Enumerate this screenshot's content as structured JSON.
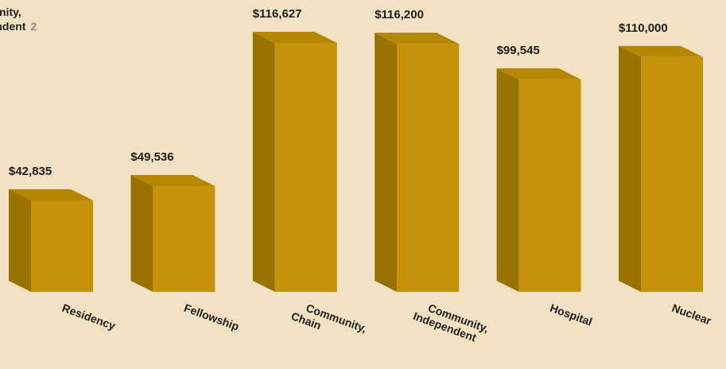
{
  "legend_fragment": {
    "line1": "munity,",
    "line2": "pendent",
    "number": "2"
  },
  "chart_data": {
    "type": "bar",
    "categories": [
      "Residency",
      "Fellowship",
      "Community,\nChain",
      "Community,\nIndependent",
      "Hospital",
      "Nuclear"
    ],
    "values": [
      42835,
      49536,
      116627,
      116200,
      99545,
      110000
    ],
    "value_labels": [
      "$42,835",
      "$49,536",
      "$116,627",
      "$116,200",
      "$99,545",
      "$110,000"
    ],
    "title": "",
    "xlabel": "",
    "ylabel": "",
    "style": "3d-bar",
    "grid": false,
    "colors": {
      "front": "#c6920a",
      "side": "#9a7200",
      "top": "#b58600",
      "background": "#f2e2c3"
    }
  }
}
